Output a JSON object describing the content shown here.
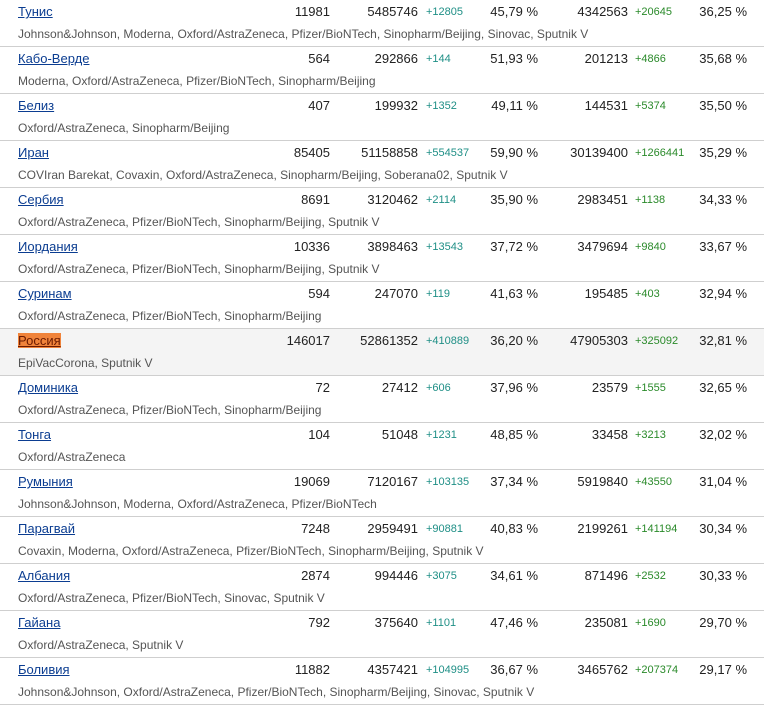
{
  "rows": [
    {
      "name": "Тунис",
      "population": "11981",
      "doses": "5485746",
      "doses_inc": "+12805",
      "pct_doses": "45,79 %",
      "fully": "4342563",
      "fully_inc": "+20645",
      "pct_fully": "36,25 %",
      "vaccines": "Johnson&Johnson, Moderna, Oxford/AstraZeneca, Pfizer/BioNTech, Sinopharm/Beijing, Sinovac, Sputnik V",
      "highlight": false
    },
    {
      "name": "Кабо-Верде",
      "population": "564",
      "doses": "292866",
      "doses_inc": "+144",
      "pct_doses": "51,93 %",
      "fully": "201213",
      "fully_inc": "+4866",
      "pct_fully": "35,68 %",
      "vaccines": "Moderna, Oxford/AstraZeneca, Pfizer/BioNTech, Sinopharm/Beijing",
      "highlight": false
    },
    {
      "name": "Белиз",
      "population": "407",
      "doses": "199932",
      "doses_inc": "+1352",
      "pct_doses": "49,11 %",
      "fully": "144531",
      "fully_inc": "+5374",
      "pct_fully": "35,50 %",
      "vaccines": "Oxford/AstraZeneca, Sinopharm/Beijing",
      "highlight": false
    },
    {
      "name": "Иран",
      "population": "85405",
      "doses": "51158858",
      "doses_inc": "+554537",
      "pct_doses": "59,90 %",
      "fully": "30139400",
      "fully_inc": "+1266441",
      "pct_fully": "35,29 %",
      "vaccines": "COVIran Barekat, Covaxin, Oxford/AstraZeneca, Sinopharm/Beijing, Soberana02, Sputnik V",
      "highlight": false
    },
    {
      "name": "Сербия",
      "population": "8691",
      "doses": "3120462",
      "doses_inc": "+2114",
      "pct_doses": "35,90 %",
      "fully": "2983451",
      "fully_inc": "+1138",
      "pct_fully": "34,33 %",
      "vaccines": "Oxford/AstraZeneca, Pfizer/BioNTech, Sinopharm/Beijing, Sputnik V",
      "highlight": false
    },
    {
      "name": "Иордания",
      "population": "10336",
      "doses": "3898463",
      "doses_inc": "+13543",
      "pct_doses": "37,72 %",
      "fully": "3479694",
      "fully_inc": "+9840",
      "pct_fully": "33,67 %",
      "vaccines": "Oxford/AstraZeneca, Pfizer/BioNTech, Sinopharm/Beijing, Sputnik V",
      "highlight": false
    },
    {
      "name": "Суринам",
      "population": "594",
      "doses": "247070",
      "doses_inc": "+119",
      "pct_doses": "41,63 %",
      "fully": "195485",
      "fully_inc": "+403",
      "pct_fully": "32,94 %",
      "vaccines": "Oxford/AstraZeneca, Pfizer/BioNTech, Sinopharm/Beijing",
      "highlight": false
    },
    {
      "name": "Россия",
      "population": "146017",
      "doses": "52861352",
      "doses_inc": "+410889",
      "pct_doses": "36,20 %",
      "fully": "47905303",
      "fully_inc": "+325092",
      "pct_fully": "32,81 %",
      "vaccines": "EpiVacCorona, Sputnik V",
      "highlight": true
    },
    {
      "name": "Доминика",
      "population": "72",
      "doses": "27412",
      "doses_inc": "+606",
      "pct_doses": "37,96 %",
      "fully": "23579",
      "fully_inc": "+1555",
      "pct_fully": "32,65 %",
      "vaccines": "Oxford/AstraZeneca, Pfizer/BioNTech, Sinopharm/Beijing",
      "highlight": false
    },
    {
      "name": "Тонга",
      "population": "104",
      "doses": "51048",
      "doses_inc": "+1231",
      "pct_doses": "48,85 %",
      "fully": "33458",
      "fully_inc": "+3213",
      "pct_fully": "32,02 %",
      "vaccines": "Oxford/AstraZeneca",
      "highlight": false
    },
    {
      "name": "Румыния",
      "population": "19069",
      "doses": "7120167",
      "doses_inc": "+103135",
      "pct_doses": "37,34 %",
      "fully": "5919840",
      "fully_inc": "+43550",
      "pct_fully": "31,04 %",
      "vaccines": "Johnson&Johnson, Moderna, Oxford/AstraZeneca, Pfizer/BioNTech",
      "highlight": false
    },
    {
      "name": "Парагвай",
      "population": "7248",
      "doses": "2959491",
      "doses_inc": "+90881",
      "pct_doses": "40,83 %",
      "fully": "2199261",
      "fully_inc": "+141194",
      "pct_fully": "30,34 %",
      "vaccines": "Covaxin, Moderna, Oxford/AstraZeneca, Pfizer/BioNTech, Sinopharm/Beijing, Sputnik V",
      "highlight": false
    },
    {
      "name": "Албания",
      "population": "2874",
      "doses": "994446",
      "doses_inc": "+3075",
      "pct_doses": "34,61 %",
      "fully": "871496",
      "fully_inc": "+2532",
      "pct_fully": "30,33 %",
      "vaccines": "Oxford/AstraZeneca, Pfizer/BioNTech, Sinovac, Sputnik V",
      "highlight": false
    },
    {
      "name": "Гайана",
      "population": "792",
      "doses": "375640",
      "doses_inc": "+1101",
      "pct_doses": "47,46 %",
      "fully": "235081",
      "fully_inc": "+1690",
      "pct_fully": "29,70 %",
      "vaccines": "Oxford/AstraZeneca, Sputnik V",
      "highlight": false
    },
    {
      "name": "Боливия",
      "population": "11882",
      "doses": "4357421",
      "doses_inc": "+104995",
      "pct_doses": "36,67 %",
      "fully": "3465762",
      "fully_inc": "+207374",
      "pct_fully": "29,17 %",
      "vaccines": "Johnson&Johnson, Oxford/AstraZeneca, Pfizer/BioNTech, Sinopharm/Beijing, Sinovac, Sputnik V",
      "highlight": false
    }
  ],
  "colors": {
    "link": "#0b3d91",
    "doses_increase": "#1f8f86",
    "fully_increase": "#2a8a2a",
    "highlight": "#f0833a"
  }
}
